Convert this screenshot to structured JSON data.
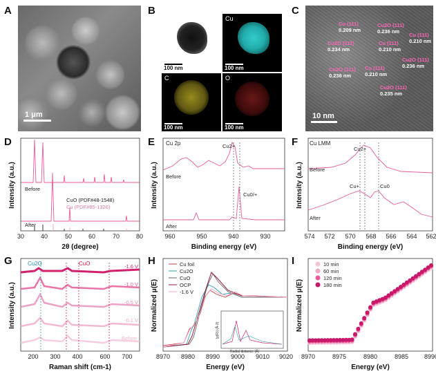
{
  "panels": {
    "A": {
      "letter": "A",
      "scale": "1 μm"
    },
    "B": {
      "letter": "B",
      "tiles": [
        "",
        "Cu",
        "C",
        "O"
      ],
      "scale": "100 nm"
    },
    "C": {
      "letter": "C",
      "scale": "10 nm",
      "labels": [
        {
          "phase": "Cu (111)",
          "d": "0.209 nm"
        },
        {
          "phase": "Cu2O (111)",
          "d": "0.236 nm"
        },
        {
          "phase": "Cu (111)",
          "d": "0.210 nm"
        },
        {
          "phase": "Cu2O (111)",
          "d": "0.234 nm"
        },
        {
          "phase": "Cu (111)",
          "d": "0.210 nm"
        },
        {
          "phase": "Cu2O (111)",
          "d": "0.236 nm"
        },
        {
          "phase": "Cu2O (111)",
          "d": "0.236 nm"
        },
        {
          "phase": "Cu (111)",
          "d": "0.210 nm"
        },
        {
          "phase": "Cu2O (111)",
          "d": "0.235 nm"
        }
      ]
    },
    "D": {
      "letter": "D",
      "xlabel": "2θ (degree)",
      "ylabel": "Intensity (a.u.)",
      "before": "Before",
      "after": "After",
      "ref1": "CuO (PDF#48-1548)",
      "ref2": "Cu (PDF#85-1326)",
      "ticks": [
        "30",
        "40",
        "50",
        "60",
        "70",
        "80"
      ]
    },
    "E": {
      "letter": "E",
      "title": "Cu 2p",
      "xlabel": "Binding energy (eV)",
      "ylabel": "Intensity (a.u.)",
      "before": "Before",
      "after": "After",
      "ann1": "Cu2+",
      "ann2": "Cu0/+",
      "ticks": [
        "960",
        "950",
        "940",
        "930"
      ]
    },
    "F": {
      "letter": "F",
      "title": "Cu LMM",
      "xlabel": "Binding energy (eV)",
      "ylabel": "Intensity (a.u.)",
      "before": "Before",
      "after": "After",
      "ann1": "Cu2+",
      "ann2": "Cu+",
      "ann3": "Cu0",
      "ticks": [
        "574",
        "572",
        "570",
        "568",
        "566",
        "564",
        "562"
      ]
    },
    "G": {
      "letter": "G",
      "xlabel": "Raman shift (cm-1)",
      "ylabel": "Intensity (a.u.)",
      "ann1": "Cu2O",
      "ann2": "CuO",
      "potentials": [
        "-1.6 V",
        "-1.0 V",
        "-0.5 V",
        "-0.1 V",
        "Before"
      ],
      "ticks": [
        "200",
        "300",
        "400",
        "600",
        "700"
      ]
    },
    "H": {
      "letter": "H",
      "xlabel": "Energy (eV)",
      "ylabel": "Normalized μ(E)",
      "legend": [
        "Cu foil",
        "Cu2O",
        "CuO",
        "OCP",
        "-1.6 V"
      ],
      "inset_xlabel": "Radial distance (Å)",
      "inset_ylabel": "|χ(R)| (Å-3)",
      "ticks": [
        "8970",
        "8980",
        "8990",
        "9000",
        "9010",
        "9020"
      ]
    },
    "I": {
      "letter": "I",
      "xlabel": "Energy (eV)",
      "ylabel": "Normalized μ(E)",
      "legend": [
        "10 min",
        "60 min",
        "120 min",
        "180 min"
      ],
      "ticks": [
        "8970",
        "8975",
        "8980",
        "8985",
        "8990"
      ]
    }
  },
  "colors": {
    "pink": "#e85a9a",
    "lightpink": "#f0a8c8",
    "magenta": "#d0206e",
    "darkred": "#8b1a3a",
    "cyan": "#30b0b8",
    "olive": "#c8c030"
  }
}
